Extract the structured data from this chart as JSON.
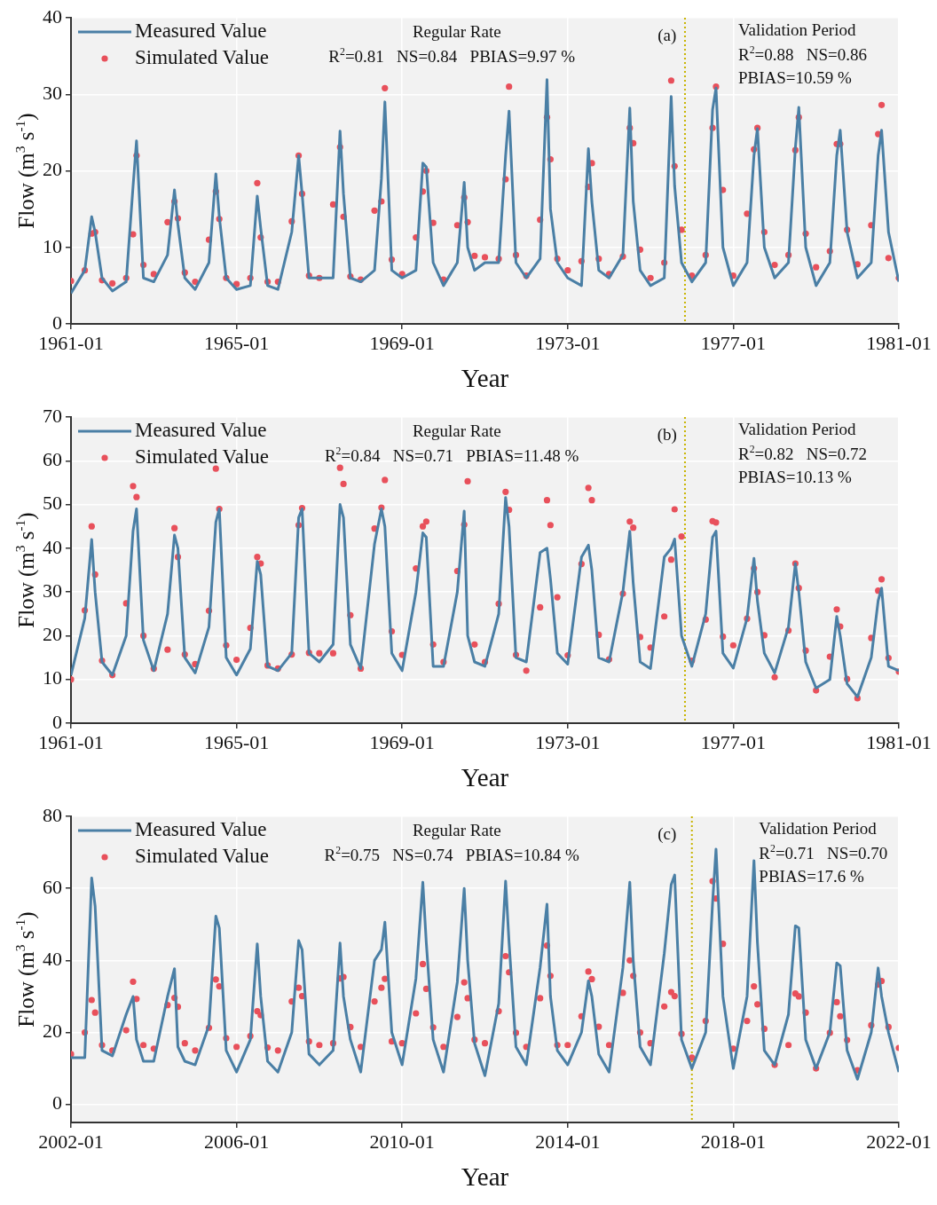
{
  "chart_data": [
    {
      "type": "line",
      "xlabel": "Year",
      "ylabel": "Flow (m$^{3}$ s$^{-1}$)",
      "grid": true,
      "legend": "top left",
      "xlim": [
        "1961-01",
        "1981-01"
      ],
      "xticks": [
        "1961-01",
        "1965-01",
        "1969-01",
        "1973-01",
        "1977-01",
        "1981-01"
      ],
      "ylim": [
        0,
        40
      ],
      "yticks": [
        0,
        10,
        20,
        30,
        40
      ],
      "annotations": [
        "Regular Rate",
        "R$^{2}$=0.81   NS=0.84   PBIAS=9.97 %",
        "(a)",
        "Validation Period",
        "R$^{2}$=0.88   NS=0.86",
        "PBIAS=10.59 %"
      ],
      "ref_lines": [
        {
          "axis": "x",
          "value": "1975-11",
          "color": "#c8b400",
          "line_style": "dotted"
        }
      ],
      "x": [
        "1961-01",
        "1961-05",
        "1961-07",
        "1961-08",
        "1961-10",
        "1962-01",
        "1962-05",
        "1962-07",
        "1962-08",
        "1962-10",
        "1963-01",
        "1963-05",
        "1963-07",
        "1963-08",
        "1963-10",
        "1964-01",
        "1964-05",
        "1964-07",
        "1964-08",
        "1964-10",
        "1965-01",
        "1965-05",
        "1965-07",
        "1965-08",
        "1965-10",
        "1966-01",
        "1966-05",
        "1966-07",
        "1966-08",
        "1966-10",
        "1967-01",
        "1967-05",
        "1967-07",
        "1967-08",
        "1967-10",
        "1968-01",
        "1968-05",
        "1968-07",
        "1968-08",
        "1968-10",
        "1969-01",
        "1969-05",
        "1969-07",
        "1969-08",
        "1969-10",
        "1970-01",
        "1970-05",
        "1970-07",
        "1970-08",
        "1970-10",
        "1971-01",
        "1971-05",
        "1971-07",
        "1971-08",
        "1971-10",
        "1972-01",
        "1972-05",
        "1972-07",
        "1972-08",
        "1972-10",
        "1973-01",
        "1973-05",
        "1973-07",
        "1973-08",
        "1973-10",
        "1974-01",
        "1974-05",
        "1974-07",
        "1974-08",
        "1974-10",
        "1975-01",
        "1975-05",
        "1975-07",
        "1975-08",
        "1975-10",
        "1976-01",
        "1976-05",
        "1976-07",
        "1976-08",
        "1976-10",
        "1977-01",
        "1977-05",
        "1977-07",
        "1977-08",
        "1977-10",
        "1978-01",
        "1978-05",
        "1978-07",
        "1978-08",
        "1978-10",
        "1979-01",
        "1979-05",
        "1979-07",
        "1979-08",
        "1979-10",
        "1980-01",
        "1980-05",
        "1980-07",
        "1980-08",
        "1980-10",
        "1981-01"
      ],
      "series": [
        {
          "name": "Measured Value",
          "type": "line",
          "color": "#4a7fa5",
          "marker": "none",
          "line_style": "solid",
          "values": [
            4,
            7,
            14,
            12,
            6,
            4.3,
            5.5,
            18,
            23.9,
            6,
            5.5,
            9,
            17.5,
            13,
            6,
            4.5,
            8,
            19.6,
            14,
            6,
            4.5,
            5,
            16.7,
            12.5,
            5,
            4.5,
            12,
            22,
            17,
            6,
            6,
            6,
            25.2,
            17,
            6,
            5.5,
            7,
            19,
            29,
            7,
            6,
            7,
            21,
            20.5,
            8,
            5,
            8,
            18.5,
            10,
            7,
            8,
            8,
            22,
            27.8,
            8,
            6,
            8.5,
            31.9,
            15,
            8,
            6,
            5,
            22.9,
            16,
            7,
            6,
            9,
            28.2,
            16,
            7,
            5,
            6,
            29.7,
            18,
            8,
            5.5,
            8,
            28,
            30.8,
            10,
            5,
            8,
            22,
            25.5,
            10,
            6,
            8,
            23,
            28.3,
            10,
            5,
            8,
            22,
            25.3,
            12,
            6,
            8,
            22,
            25.3,
            12,
            5.5
          ]
        },
        {
          "name": "Simulated Value",
          "type": "scatter",
          "color": "#e8505b",
          "marker": "circle",
          "values": [
            5.6,
            7,
            11.8,
            12,
            5.7,
            5.3,
            6,
            11.7,
            22,
            7.7,
            6.5,
            13.3,
            16,
            13.8,
            6.7,
            5.5,
            11,
            17.3,
            13.7,
            6,
            5.2,
            6,
            18.4,
            11.3,
            5.5,
            5.5,
            13.4,
            22,
            17,
            6.3,
            6,
            15.6,
            23.1,
            14,
            6.2,
            5.8,
            14.8,
            16,
            30.8,
            8.4,
            6.5,
            11.3,
            17.3,
            20,
            13.2,
            5.8,
            12.9,
            16.5,
            13.3,
            8.9,
            8.7,
            8.5,
            18.9,
            31,
            9,
            6.3,
            13.6,
            27,
            21.5,
            8.5,
            7,
            8.2,
            17.9,
            21,
            8.5,
            6.5,
            8.8,
            25.6,
            23.6,
            9.7,
            6,
            8,
            31.8,
            20.6,
            12.3,
            6.3,
            9,
            25.6,
            31,
            17.5,
            6.3,
            14.4,
            22.8,
            25.6,
            12,
            7.7,
            9,
            22.7,
            27,
            11.8,
            7.4,
            9.5,
            23.5,
            23.5,
            12.3,
            7.8,
            12.9,
            24.8,
            28.6,
            8.6,
            6
          ]
        }
      ]
    },
    {
      "type": "line",
      "xlabel": "Year",
      "ylabel": "Flow (m$^{3}$ s$^{-1}$)",
      "grid": true,
      "legend": "top left",
      "xlim": [
        "1961-01",
        "1981-01"
      ],
      "xticks": [
        "1961-01",
        "1965-01",
        "1969-01",
        "1973-01",
        "1977-01",
        "1981-01"
      ],
      "ylim": [
        0,
        70
      ],
      "yticks": [
        0,
        10,
        20,
        30,
        40,
        50,
        60,
        70
      ],
      "annotations": [
        "Regular Rate",
        "R$^{2}$=0.84   NS=0.71   PBIAS=11.48 %",
        "(b)",
        "Validation Period",
        "R$^{2}$=0.82   NS=0.72",
        "PBIAS=10.13 %"
      ],
      "ref_lines": [
        {
          "axis": "x",
          "value": "1975-11",
          "color": "#c8b400",
          "line_style": "dotted"
        }
      ],
      "x": [
        "1961-01",
        "1961-05",
        "1961-07",
        "1961-08",
        "1961-10",
        "1962-01",
        "1962-05",
        "1962-07",
        "1962-08",
        "1962-10",
        "1963-01",
        "1963-05",
        "1963-07",
        "1963-08",
        "1963-10",
        "1964-01",
        "1964-05",
        "1964-07",
        "1964-08",
        "1964-10",
        "1965-01",
        "1965-05",
        "1965-07",
        "1965-08",
        "1965-10",
        "1966-01",
        "1966-05",
        "1966-07",
        "1966-08",
        "1966-10",
        "1967-01",
        "1967-05",
        "1967-07",
        "1967-08",
        "1967-10",
        "1968-01",
        "1968-05",
        "1968-07",
        "1968-08",
        "1968-10",
        "1969-01",
        "1969-05",
        "1969-07",
        "1969-08",
        "1969-10",
        "1970-01",
        "1970-05",
        "1970-07",
        "1970-08",
        "1970-10",
        "1971-01",
        "1971-05",
        "1971-07",
        "1971-08",
        "1971-10",
        "1972-01",
        "1972-05",
        "1972-07",
        "1972-08",
        "1972-10",
        "1973-01",
        "1973-05",
        "1973-07",
        "1973-08",
        "1973-10",
        "1974-01",
        "1974-05",
        "1974-07",
        "1974-08",
        "1974-10",
        "1975-01",
        "1975-05",
        "1975-07",
        "1975-08",
        "1975-10",
        "1976-01",
        "1976-05",
        "1976-07",
        "1976-08",
        "1976-10",
        "1977-01",
        "1977-05",
        "1977-07",
        "1977-08",
        "1977-10",
        "1978-01",
        "1978-05",
        "1978-07",
        "1978-08",
        "1978-10",
        "1979-01",
        "1979-05",
        "1979-07",
        "1979-08",
        "1979-10",
        "1980-01",
        "1980-05",
        "1980-07",
        "1980-08",
        "1980-10",
        "1981-01"
      ],
      "series": [
        {
          "name": "Measured Value",
          "type": "line",
          "color": "#4a7fa5",
          "marker": "none",
          "line_style": "solid",
          "values": [
            11,
            24,
            42,
            30,
            14,
            11,
            20,
            44,
            49,
            19,
            12,
            25,
            43,
            40,
            15,
            11.5,
            22,
            46,
            49,
            15,
            11,
            17,
            37,
            34,
            13,
            12,
            16,
            47,
            49,
            16,
            14,
            18,
            50,
            47,
            18,
            12.5,
            41,
            49,
            45,
            16,
            12,
            30,
            43.5,
            42.5,
            13,
            13,
            30,
            48.5,
            20,
            14,
            13,
            25,
            51.6,
            45,
            15,
            14,
            39,
            40,
            33,
            16,
            13.5,
            38,
            40.7,
            35,
            15,
            14,
            30,
            43.9,
            32,
            14,
            12.5,
            38,
            40,
            42.1,
            20,
            13,
            25,
            42.5,
            43.9,
            16,
            12.6,
            24,
            37.7,
            28,
            16,
            11.5,
            22,
            36.5,
            30,
            14,
            8,
            10,
            24.4,
            20,
            9,
            6,
            15,
            28,
            30.9,
            13,
            12
          ]
        },
        {
          "name": "Simulated Value",
          "type": "scatter",
          "color": "#e8505b",
          "marker": "circle",
          "values": [
            10,
            25.8,
            45,
            34,
            14.3,
            11,
            27.4,
            54.2,
            51.7,
            20,
            12.5,
            16.8,
            44.6,
            38,
            15.7,
            13.5,
            25.7,
            58.2,
            49,
            17.8,
            14.5,
            21.8,
            38,
            36.5,
            13.2,
            12.5,
            15.7,
            45.3,
            49.2,
            16.1,
            16,
            16,
            58.4,
            54.7,
            24.7,
            12.5,
            44.5,
            49.3,
            55.6,
            21,
            15.6,
            35.4,
            45,
            46.1,
            18,
            14,
            34.8,
            45.4,
            55.3,
            18,
            14,
            27.3,
            52.9,
            48.8,
            15.6,
            12,
            26.5,
            51,
            45.3,
            28.8,
            15.5,
            36.4,
            53.8,
            51,
            20.2,
            14.6,
            29.6,
            46.1,
            44.7,
            19.7,
            17.3,
            24.4,
            37.4,
            48.9,
            42.7,
            14.3,
            23.7,
            46.2,
            45.9,
            19.8,
            17.8,
            23.9,
            35.4,
            30,
            20.1,
            10.5,
            21.2,
            36.5,
            30.9,
            16.6,
            7.5,
            15.2,
            26,
            22.1,
            10.1,
            5.7,
            19.5,
            30.3,
            32.9,
            14.9,
            11.8
          ]
        }
      ]
    },
    {
      "type": "line",
      "xlabel": "Year",
      "ylabel": "Flow (m$^{3}$ s$^{-1}$)",
      "grid": true,
      "legend": "top left",
      "xlim": [
        "2002-01",
        "2022-01"
      ],
      "xticks": [
        "2002-01",
        "2006-01",
        "2010-01",
        "2014-01",
        "2018-01",
        "2022-01"
      ],
      "ylim": [
        -5,
        80
      ],
      "yticks": [
        0,
        20,
        40,
        60,
        80
      ],
      "annotations": [
        "Regular Rate",
        "R$^{2}$=0.75   NS=0.74   PBIAS=10.84 %",
        "(c)",
        "Validation Period",
        "R$^{2}$=0.71   NS=0.70",
        "PBIAS=17.6 %"
      ],
      "ref_lines": [
        {
          "axis": "x",
          "value": "2017-01",
          "color": "#c8b400",
          "line_style": "dotted"
        }
      ],
      "x": [
        "2002-01",
        "2002-05",
        "2002-07",
        "2002-08",
        "2002-10",
        "2003-01",
        "2003-05",
        "2003-07",
        "2003-08",
        "2003-10",
        "2004-01",
        "2004-05",
        "2004-07",
        "2004-08",
        "2004-10",
        "2005-01",
        "2005-05",
        "2005-07",
        "2005-08",
        "2005-10",
        "2006-01",
        "2006-05",
        "2006-07",
        "2006-08",
        "2006-10",
        "2007-01",
        "2007-05",
        "2007-07",
        "2007-08",
        "2007-10",
        "2008-01",
        "2008-05",
        "2008-07",
        "2008-08",
        "2008-10",
        "2009-01",
        "2009-05",
        "2009-07",
        "2009-08",
        "2009-10",
        "2010-01",
        "2010-05",
        "2010-07",
        "2010-08",
        "2010-10",
        "2011-01",
        "2011-05",
        "2011-07",
        "2011-08",
        "2011-10",
        "2012-01",
        "2012-05",
        "2012-07",
        "2012-08",
        "2012-10",
        "2013-01",
        "2013-05",
        "2013-07",
        "2013-08",
        "2013-10",
        "2014-01",
        "2014-05",
        "2014-07",
        "2014-08",
        "2014-10",
        "2015-01",
        "2015-05",
        "2015-07",
        "2015-08",
        "2015-10",
        "2016-01",
        "2016-05",
        "2016-07",
        "2016-08",
        "2016-10",
        "2017-01",
        "2017-05",
        "2017-07",
        "2017-08",
        "2017-10",
        "2018-01",
        "2018-05",
        "2018-07",
        "2018-08",
        "2018-10",
        "2019-01",
        "2019-05",
        "2019-07",
        "2019-08",
        "2019-10",
        "2020-01",
        "2020-05",
        "2020-07",
        "2020-08",
        "2020-10",
        "2021-01",
        "2021-05",
        "2021-07",
        "2021-08",
        "2021-10",
        "2022-01"
      ],
      "series": [
        {
          "name": "Measured Value",
          "type": "line",
          "color": "#4a7fa5",
          "marker": "none",
          "line_style": "solid",
          "values": [
            13,
            13,
            62.9,
            55,
            15,
            13.5,
            25,
            30,
            18,
            12,
            12,
            30,
            37.7,
            16,
            12,
            11,
            22,
            52.3,
            49,
            15,
            9,
            18,
            44.6,
            30,
            12,
            9,
            20,
            45.5,
            43,
            14,
            11,
            15,
            44.8,
            30,
            18,
            9,
            40,
            43,
            50.6,
            20,
            11,
            35,
            61.7,
            45,
            18,
            9,
            34,
            60,
            40,
            17,
            8,
            28,
            62,
            45,
            16,
            11,
            38,
            55.6,
            30,
            15,
            11,
            20,
            34.3,
            30,
            14,
            9,
            38,
            61.7,
            40,
            16,
            11,
            42,
            61,
            63.7,
            18,
            10,
            20,
            56,
            70.9,
            30,
            10,
            30,
            67.7,
            45,
            15,
            11,
            25,
            49.6,
            49,
            18,
            10,
            20,
            39.3,
            38.5,
            15,
            7,
            20,
            37.9,
            30,
            20,
            9
          ]
        },
        {
          "name": "Simulated Value",
          "type": "scatter",
          "color": "#e8505b",
          "marker": "circle",
          "values": [
            14,
            20,
            29,
            25.5,
            16.5,
            15,
            20.6,
            34.1,
            29.3,
            16.5,
            15.5,
            27.6,
            29.6,
            27.1,
            17,
            15,
            21.3,
            34.7,
            32.8,
            18.4,
            16,
            19,
            25.9,
            24.8,
            15.8,
            15,
            28.6,
            32.4,
            30.1,
            17.5,
            16.5,
            17,
            35,
            35.4,
            21.5,
            16,
            28.6,
            32.4,
            34.9,
            17.5,
            17,
            25.3,
            39,
            32.1,
            21.4,
            16,
            24.3,
            33.9,
            29.5,
            18,
            17,
            25.9,
            41.2,
            36.7,
            19.9,
            16,
            29.5,
            44.1,
            35.7,
            16.5,
            16.5,
            24.5,
            36.9,
            34.8,
            21.6,
            16.5,
            31,
            40,
            35.7,
            20,
            17,
            27.2,
            31.2,
            30.1,
            19.6,
            13,
            23.2,
            62,
            57.2,
            44.6,
            15.5,
            23.2,
            32.8,
            27.8,
            21,
            11,
            16.5,
            30.8,
            30,
            25.5,
            10,
            19.9,
            28.4,
            24.5,
            17.9,
            9.5,
            22,
            33.3,
            34.3,
            21.5,
            15.7
          ]
        }
      ]
    }
  ]
}
